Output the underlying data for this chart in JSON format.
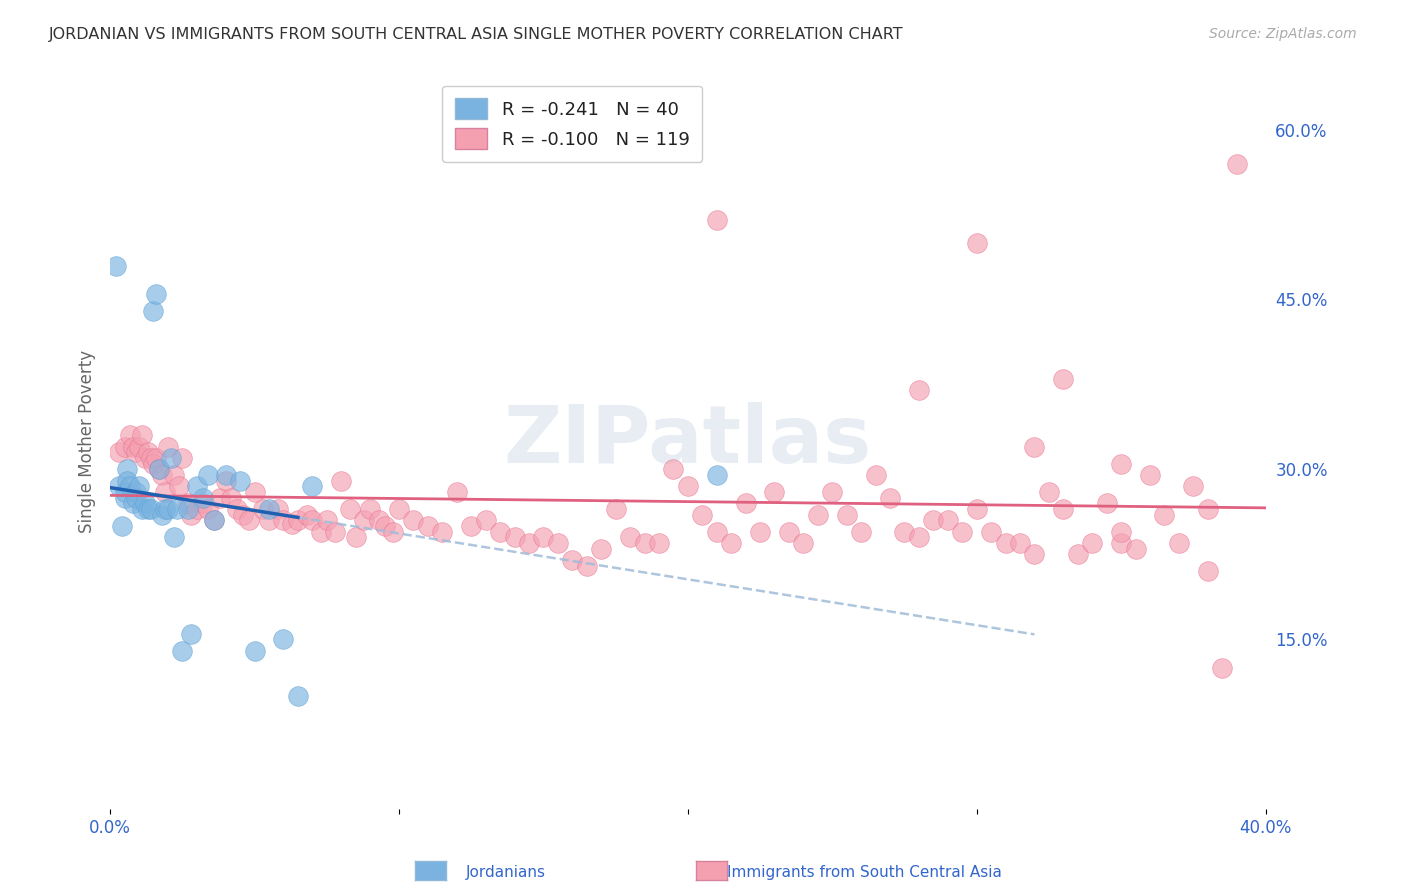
{
  "title": "JORDANIAN VS IMMIGRANTS FROM SOUTH CENTRAL ASIA SINGLE MOTHER POVERTY CORRELATION CHART",
  "source": "Source: ZipAtlas.com",
  "ylabel": "Single Mother Poverty",
  "xlim": [
    0.0,
    0.4
  ],
  "ylim": [
    0.0,
    0.65
  ],
  "y_ticks_right": [
    0.15,
    0.3,
    0.45,
    0.6
  ],
  "y_tick_labels_right": [
    "15.0%",
    "30.0%",
    "45.0%",
    "60.0%"
  ],
  "legend_label1": "Jordanians",
  "legend_label2": "Immigrants from South Central Asia",
  "watermark": "ZIPatlas",
  "jordanian_R": -0.241,
  "jordanian_N": 40,
  "immigrant_R": -0.1,
  "immigrant_N": 119,
  "jordanian_color": "#7ab3e0",
  "jordanian_edge": "#5a9fd4",
  "immigrant_color": "#f4a0b0",
  "immigrant_edge": "#e87090",
  "jordanian_x": [
    0.002,
    0.003,
    0.004,
    0.005,
    0.005,
    0.006,
    0.006,
    0.007,
    0.008,
    0.009,
    0.009,
    0.01,
    0.011,
    0.012,
    0.013,
    0.014,
    0.015,
    0.016,
    0.017,
    0.018,
    0.019,
    0.02,
    0.021,
    0.022,
    0.023,
    0.025,
    0.027,
    0.028,
    0.03,
    0.032,
    0.034,
    0.036,
    0.04,
    0.045,
    0.05,
    0.055,
    0.06,
    0.065,
    0.07,
    0.21
  ],
  "jordanian_y": [
    0.48,
    0.285,
    0.25,
    0.275,
    0.28,
    0.3,
    0.29,
    0.285,
    0.27,
    0.28,
    0.275,
    0.285,
    0.265,
    0.27,
    0.265,
    0.265,
    0.44,
    0.455,
    0.3,
    0.26,
    0.265,
    0.265,
    0.31,
    0.24,
    0.265,
    0.14,
    0.265,
    0.155,
    0.285,
    0.275,
    0.295,
    0.255,
    0.295,
    0.29,
    0.14,
    0.265,
    0.15,
    0.1,
    0.285,
    0.295
  ],
  "immigrant_x": [
    0.003,
    0.005,
    0.007,
    0.008,
    0.009,
    0.01,
    0.011,
    0.012,
    0.013,
    0.014,
    0.015,
    0.016,
    0.017,
    0.018,
    0.019,
    0.02,
    0.022,
    0.024,
    0.025,
    0.027,
    0.028,
    0.03,
    0.032,
    0.034,
    0.036,
    0.038,
    0.04,
    0.042,
    0.044,
    0.046,
    0.048,
    0.05,
    0.053,
    0.055,
    0.058,
    0.06,
    0.063,
    0.065,
    0.068,
    0.07,
    0.073,
    0.075,
    0.078,
    0.08,
    0.083,
    0.085,
    0.088,
    0.09,
    0.093,
    0.095,
    0.098,
    0.1,
    0.105,
    0.11,
    0.115,
    0.12,
    0.125,
    0.13,
    0.135,
    0.14,
    0.145,
    0.15,
    0.155,
    0.16,
    0.165,
    0.17,
    0.175,
    0.18,
    0.185,
    0.19,
    0.195,
    0.2,
    0.205,
    0.21,
    0.215,
    0.22,
    0.225,
    0.23,
    0.235,
    0.24,
    0.245,
    0.25,
    0.255,
    0.26,
    0.265,
    0.27,
    0.275,
    0.28,
    0.285,
    0.29,
    0.295,
    0.3,
    0.305,
    0.31,
    0.315,
    0.32,
    0.325,
    0.33,
    0.335,
    0.34,
    0.345,
    0.35,
    0.355,
    0.36,
    0.365,
    0.37,
    0.375,
    0.38,
    0.385,
    0.39,
    0.21,
    0.3,
    0.33,
    0.28,
    0.35,
    0.32,
    0.38,
    0.35,
    0.39
  ],
  "immigrant_y": [
    0.315,
    0.32,
    0.33,
    0.32,
    0.315,
    0.32,
    0.33,
    0.31,
    0.315,
    0.31,
    0.305,
    0.31,
    0.3,
    0.295,
    0.28,
    0.32,
    0.295,
    0.285,
    0.31,
    0.27,
    0.26,
    0.265,
    0.27,
    0.265,
    0.255,
    0.275,
    0.29,
    0.275,
    0.265,
    0.26,
    0.255,
    0.28,
    0.265,
    0.255,
    0.265,
    0.255,
    0.252,
    0.255,
    0.26,
    0.255,
    0.245,
    0.255,
    0.245,
    0.29,
    0.265,
    0.24,
    0.255,
    0.265,
    0.255,
    0.25,
    0.245,
    0.265,
    0.255,
    0.25,
    0.245,
    0.28,
    0.25,
    0.255,
    0.245,
    0.24,
    0.235,
    0.24,
    0.235,
    0.22,
    0.215,
    0.23,
    0.265,
    0.24,
    0.235,
    0.235,
    0.3,
    0.285,
    0.26,
    0.245,
    0.235,
    0.27,
    0.245,
    0.28,
    0.245,
    0.235,
    0.26,
    0.28,
    0.26,
    0.245,
    0.295,
    0.275,
    0.245,
    0.24,
    0.255,
    0.255,
    0.245,
    0.265,
    0.245,
    0.235,
    0.235,
    0.225,
    0.28,
    0.265,
    0.225,
    0.235,
    0.27,
    0.235,
    0.23,
    0.295,
    0.26,
    0.235,
    0.285,
    0.21,
    0.125,
    0.57,
    0.52,
    0.5,
    0.38,
    0.37,
    0.305,
    0.32,
    0.265,
    0.245
  ],
  "bg_color": "#ffffff",
  "grid_color": "#d0d0d0",
  "title_color": "#333333"
}
